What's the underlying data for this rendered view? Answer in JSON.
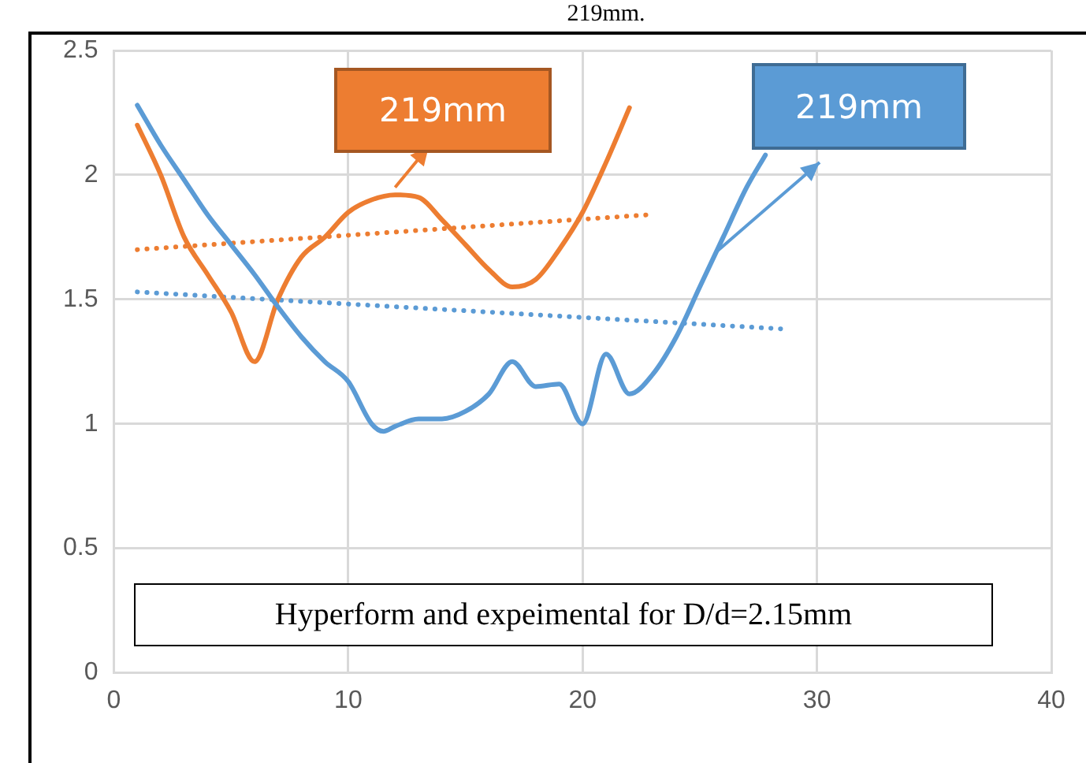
{
  "chart_data": {
    "type": "line",
    "title": "219mm.",
    "x": [
      1,
      2,
      3,
      4,
      5,
      6,
      7,
      8,
      9,
      10,
      11,
      11.5,
      12,
      13,
      14,
      15,
      16,
      17,
      18,
      19,
      20,
      21,
      22,
      23,
      24,
      25,
      26,
      27,
      27.8
    ],
    "series": [
      {
        "color": "#5b9bd5",
        "values": [
          2.28,
          2.12,
          1.98,
          1.84,
          1.72,
          1.6,
          1.47,
          1.35,
          1.25,
          1.17,
          1.0,
          0.97,
          0.99,
          1.02,
          1.02,
          1.05,
          1.12,
          1.25,
          1.15,
          1.16,
          1.0,
          1.28,
          1.12,
          1.2,
          1.35,
          1.55,
          1.75,
          1.95,
          2.08
        ]
      },
      {
        "color": "#ed7d31",
        "x": [
          1,
          2,
          3,
          4,
          5,
          6,
          7,
          8,
          9,
          10,
          11,
          12,
          13,
          14,
          15,
          16,
          17,
          18,
          19,
          20,
          21,
          22
        ],
        "values": [
          2.2,
          2.0,
          1.75,
          1.6,
          1.45,
          1.25,
          1.5,
          1.67,
          1.75,
          1.85,
          1.9,
          1.92,
          1.91,
          1.82,
          1.72,
          1.62,
          1.55,
          1.58,
          1.7,
          1.85,
          2.05,
          2.27
        ]
      },
      {
        "type": "line",
        "line_style": "dotted",
        "color": "#ed7d31",
        "x": [
          1,
          22.8
        ],
        "values": [
          1.7,
          1.84
        ]
      },
      {
        "type": "line",
        "line_style": "dotted",
        "color": "#5b9bd5",
        "x": [
          1,
          28.8
        ],
        "values": [
          1.53,
          1.38
        ]
      }
    ],
    "xlim": [
      0,
      40
    ],
    "xticks": [
      0,
      10,
      20,
      30,
      40
    ],
    "ylim": [
      0,
      2.5
    ],
    "yticks": [
      0,
      0.5,
      1,
      1.5,
      2,
      2.5
    ],
    "grid": true,
    "legend": false,
    "marker": "none",
    "line_style": "solid",
    "annotations": [
      {
        "text": "219mm",
        "x": 25.7,
        "y": 1.69
      },
      {
        "text": "219mm",
        "x": 12,
        "y": 1.95
      },
      "Hyperform and expeimental for D/d=2.15mm"
    ]
  }
}
